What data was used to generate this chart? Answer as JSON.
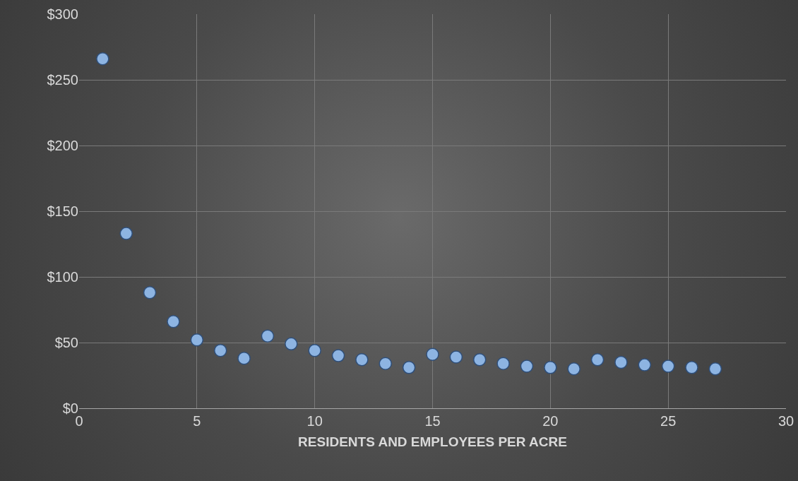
{
  "chart_data": {
    "type": "scatter",
    "xlabel": "RESIDENTS AND EMPLOYEES PER ACRE",
    "x": [
      1,
      2,
      3,
      4,
      5,
      6,
      7,
      8,
      9,
      10,
      11,
      12,
      13,
      14,
      15,
      16,
      17,
      18,
      19,
      20,
      21,
      22,
      23,
      24,
      25,
      26,
      27
    ],
    "series": [
      {
        "color": "#8db4e2",
        "values": [
          266,
          133,
          88,
          66,
          52,
          44,
          38,
          55,
          49,
          44,
          40,
          37,
          34,
          31,
          41,
          39,
          37,
          34,
          32,
          31,
          30,
          37,
          35,
          33,
          32,
          31,
          30
        ]
      }
    ],
    "xlim": [
      0,
      30
    ],
    "xticks": [
      0,
      5,
      10,
      15,
      20,
      25,
      30
    ],
    "ylim": [
      0,
      300
    ],
    "yticks": [
      {
        "value": 0,
        "label": "$0"
      },
      {
        "value": 50,
        "label": "$50"
      },
      {
        "value": 100,
        "label": "$100"
      },
      {
        "value": 150,
        "label": "$150"
      },
      {
        "value": 200,
        "label": "$200"
      },
      {
        "value": 250,
        "label": "$250"
      },
      {
        "value": 300,
        "label": "$300"
      }
    ],
    "grid": true,
    "marker": "circle",
    "legend": false
  }
}
